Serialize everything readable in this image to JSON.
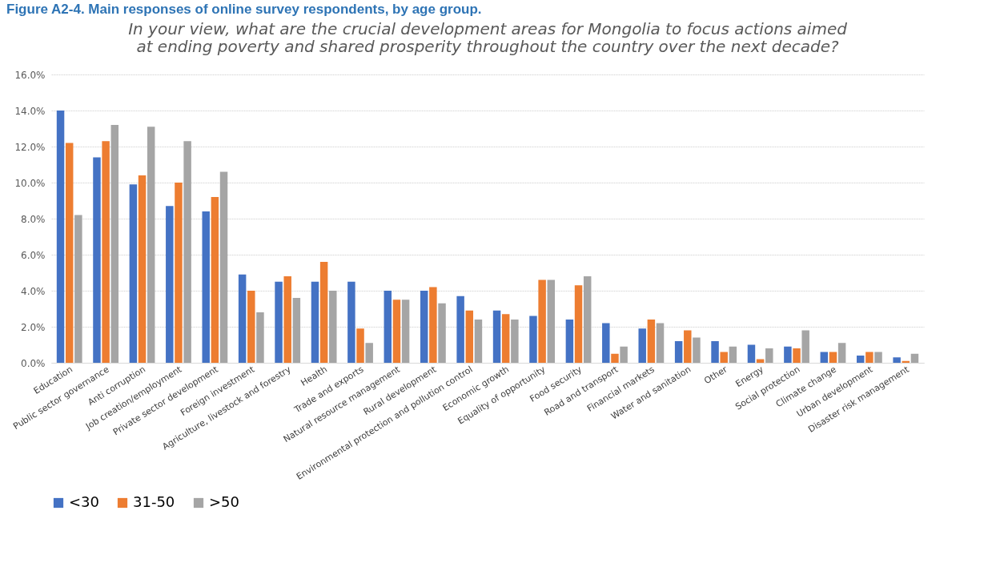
{
  "chart_data": {
    "type": "bar",
    "title": "Figure A2-4. Main responses of online survey respondents, by age group.",
    "subtitle": "In your view, what are the crucial development areas for Mongolia to focus actions aimed at ending poverty and shared prosperity throughout the country over the next decade?",
    "categories": [
      "Education",
      "Public sector governance",
      "Anti corruption",
      "Job creation/employment",
      "Private sector development",
      "Foreign investment",
      "Agriculture, livestock and forestry",
      "Health",
      "Trade and exports",
      "Natural resource management",
      "Rural development",
      "Environmental protection and pollution control",
      "Economic growth",
      "Equality of opportunity",
      "Food security",
      "Road and transport",
      "Financial markets",
      "Water and sanitation",
      "Other",
      "Energy",
      "Social protection",
      "Climate change",
      "Urban development",
      "Disaster risk management"
    ],
    "series": [
      {
        "name": "<30",
        "color": "#4472c4",
        "values": [
          14.0,
          11.4,
          9.9,
          8.7,
          8.4,
          4.9,
          4.5,
          4.5,
          4.5,
          4.0,
          4.0,
          3.7,
          2.9,
          2.6,
          2.4,
          2.2,
          1.9,
          1.2,
          1.2,
          1.0,
          0.9,
          0.6,
          0.4,
          0.3
        ]
      },
      {
        "name": "31-50",
        "color": "#ed7d31",
        "values": [
          12.2,
          12.3,
          10.4,
          10.0,
          9.2,
          4.0,
          4.8,
          5.6,
          1.9,
          3.5,
          4.2,
          2.9,
          2.7,
          4.6,
          4.3,
          0.5,
          2.4,
          1.8,
          0.6,
          0.2,
          0.8,
          0.6,
          0.6,
          0.1
        ]
      },
      {
        "name": ">50",
        "color": "#a5a5a5",
        "values": [
          8.2,
          13.2,
          13.1,
          12.3,
          10.6,
          2.8,
          3.6,
          4.0,
          1.1,
          3.5,
          3.3,
          2.4,
          2.4,
          4.6,
          4.8,
          0.9,
          2.2,
          1.4,
          0.9,
          0.8,
          1.8,
          1.1,
          0.6,
          0.5
        ]
      }
    ],
    "ylim": [
      0,
      16
    ],
    "yticks": [
      {
        "value": 0,
        "label": "0.0%"
      },
      {
        "value": 2,
        "label": "2.0%"
      },
      {
        "value": 4,
        "label": "4.0%"
      },
      {
        "value": 6,
        "label": "6.0%"
      },
      {
        "value": 8,
        "label": "8.0%"
      },
      {
        "value": 10,
        "label": "10.0%"
      },
      {
        "value": 12,
        "label": "12.0%"
      },
      {
        "value": 14,
        "label": "14.0%"
      },
      {
        "value": 16,
        "label": "16.0%"
      }
    ],
    "grid": "y",
    "legend": "bottom"
  }
}
